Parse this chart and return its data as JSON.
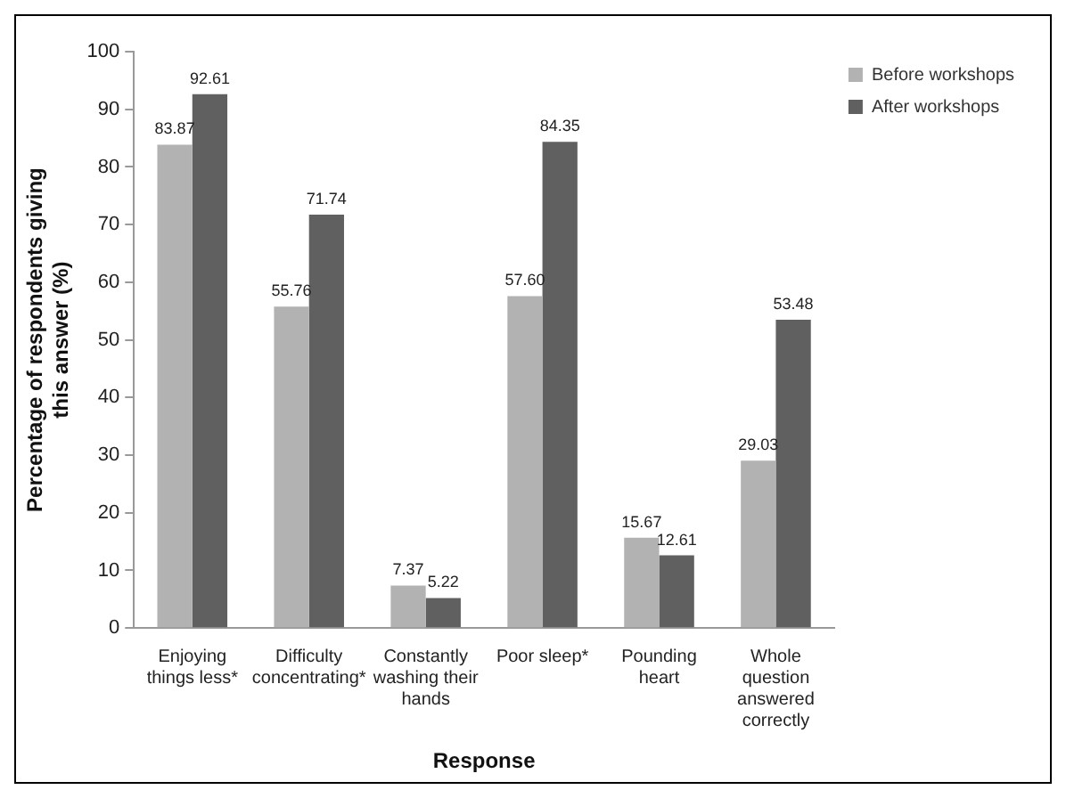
{
  "chart_data": {
    "type": "bar",
    "xlabel": "Response",
    "ylabel": "Percentage of respondents giving this answer (%)",
    "categories": [
      "Enjoying things less*",
      "Difficulty concentrating*",
      "Constantly washing their hands",
      "Poor sleep*",
      "Pounding heart",
      "Whole question answered correctly"
    ],
    "series": [
      {
        "name": "Before workshops",
        "color": "#b2b2b2",
        "values": [
          83.87,
          55.76,
          7.37,
          57.6,
          15.67,
          29.03
        ],
        "value_labels": [
          "83.87",
          "55.76",
          "7.37",
          "57.60",
          "15.67",
          "29.03"
        ]
      },
      {
        "name": "After workshops",
        "color": "#606060",
        "values": [
          92.61,
          71.74,
          5.22,
          84.35,
          12.61,
          53.48
        ],
        "value_labels": [
          "92.61",
          "71.74",
          "5.22",
          "84.35",
          "12.61",
          "53.48"
        ]
      }
    ],
    "ylim": [
      0,
      100
    ],
    "yticks": [
      0,
      10,
      20,
      30,
      40,
      50,
      60,
      70,
      80,
      90,
      100
    ],
    "grid": false,
    "legend": "top right"
  }
}
